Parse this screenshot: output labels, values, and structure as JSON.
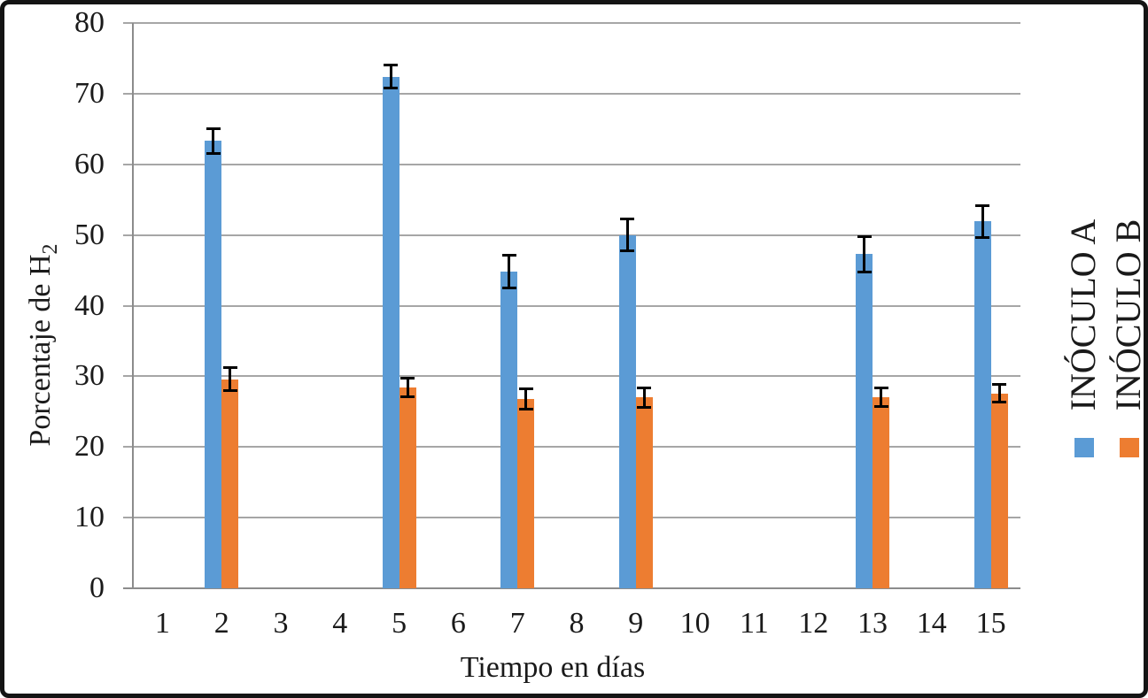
{
  "frame": {
    "background": "#ffffff",
    "border_color": "#141414"
  },
  "chart_data": {
    "type": "bar",
    "title": "",
    "xlabel": "Tiempo en días",
    "ylabel": "Porcentaje de H",
    "ylabel_subscript": "2",
    "x": [
      1,
      2,
      3,
      4,
      5,
      6,
      7,
      8,
      9,
      10,
      11,
      12,
      13,
      14,
      15
    ],
    "ylim": [
      0,
      80
    ],
    "yticks": [
      0,
      10,
      20,
      30,
      40,
      50,
      60,
      70,
      80
    ],
    "grid": true,
    "legend_position": "right, labels rotated 90° with square swatches below",
    "error_bars": true,
    "error_bar_color": "#000000",
    "gridline_color": "#a6a6a6",
    "axis_color": "#8c8c8c",
    "series": [
      {
        "name": "INÓCULO A",
        "color": "#5B9BD5",
        "values": {
          "2": 63.3,
          "5": 72.4,
          "7": 44.8,
          "9": 50.0,
          "13": 47.3,
          "15": 51.9
        },
        "errors": {
          "2": 1.8,
          "5": 1.6,
          "7": 2.3,
          "9": 2.3,
          "13": 2.5,
          "15": 2.2
        }
      },
      {
        "name": "INÓCULO B",
        "color": "#ED7D31",
        "values": {
          "2": 29.6,
          "5": 28.4,
          "7": 26.8,
          "9": 27.0,
          "13": 27.0,
          "15": 27.6
        },
        "errors": {
          "2": 1.6,
          "5": 1.3,
          "7": 1.4,
          "9": 1.4,
          "13": 1.3,
          "15": 1.3
        }
      }
    ]
  }
}
